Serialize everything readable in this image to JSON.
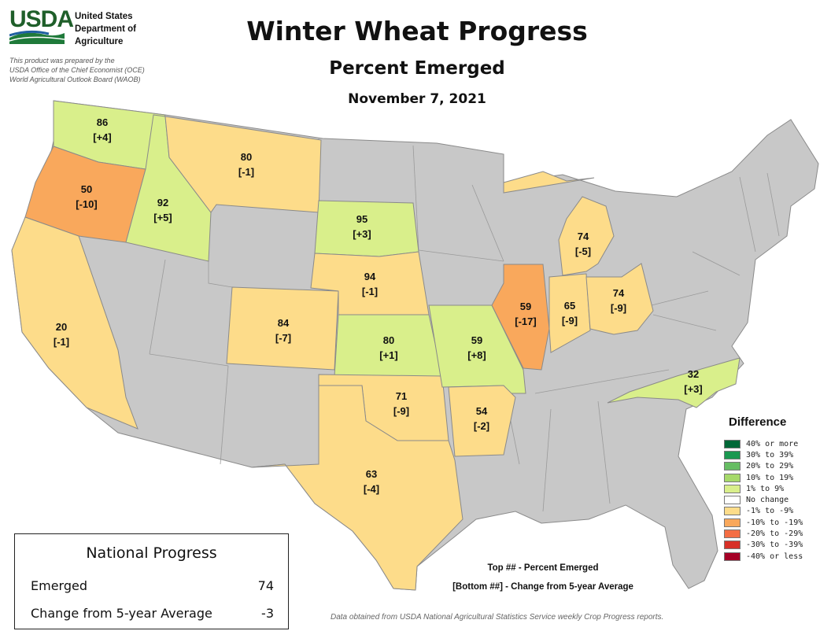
{
  "header": {
    "logo_text": "USDA",
    "agency_line1": "United States",
    "agency_line2": "Department of",
    "agency_line3": "Agriculture",
    "prepared_line1": "This product was prepared by the",
    "prepared_line2": "USDA Office of the Chief Economist (OCE)",
    "prepared_line3": "World Agricultural Outlook Board (WAOB)"
  },
  "title": "Winter Wheat Progress",
  "subtitle": "Percent Emerged",
  "date": "November 7, 2021",
  "colors": {
    "no_data": "#c8c8c8",
    "border": "#8a8a8a",
    "pos_1_9": "#d9ef8b",
    "neg_1_9": "#fddc8a",
    "neg_10_19": "#f9a85c"
  },
  "states": [
    {
      "state": "WA",
      "top": "86",
      "bottom": "[+4]",
      "category": "pos_1_9"
    },
    {
      "state": "OR",
      "top": "50",
      "bottom": "[-10]",
      "category": "neg_10_19"
    },
    {
      "state": "ID",
      "top": "92",
      "bottom": "[+5]",
      "category": "pos_1_9"
    },
    {
      "state": "MT",
      "top": "80",
      "bottom": "[-1]",
      "category": "neg_1_9"
    },
    {
      "state": "CA",
      "top": "20",
      "bottom": "[-1]",
      "category": "neg_1_9"
    },
    {
      "state": "SD",
      "top": "95",
      "bottom": "[+3]",
      "category": "pos_1_9"
    },
    {
      "state": "NE",
      "top": "94",
      "bottom": "[-1]",
      "category": "neg_1_9"
    },
    {
      "state": "CO",
      "top": "84",
      "bottom": "[-7]",
      "category": "neg_1_9"
    },
    {
      "state": "KS",
      "top": "80",
      "bottom": "[+1]",
      "category": "pos_1_9"
    },
    {
      "state": "OK",
      "top": "71",
      "bottom": "[-9]",
      "category": "neg_1_9"
    },
    {
      "state": "TX",
      "top": "63",
      "bottom": "[-4]",
      "category": "neg_1_9"
    },
    {
      "state": "MO",
      "top": "59",
      "bottom": "[+8]",
      "category": "pos_1_9"
    },
    {
      "state": "AR",
      "top": "54",
      "bottom": "[-2]",
      "category": "neg_1_9"
    },
    {
      "state": "IL",
      "top": "59",
      "bottom": "[-17]",
      "category": "neg_10_19"
    },
    {
      "state": "IN",
      "top": "65",
      "bottom": "[-9]",
      "category": "neg_1_9"
    },
    {
      "state": "OH",
      "top": "74",
      "bottom": "[-9]",
      "category": "neg_1_9"
    },
    {
      "state": "MI",
      "top": "74",
      "bottom": "[-5]",
      "category": "neg_1_9"
    },
    {
      "state": "NC",
      "top": "32",
      "bottom": "[+3]",
      "category": "pos_1_9"
    }
  ],
  "legend": {
    "title": "Difference",
    "items": [
      {
        "label": "40% or more",
        "color": "#006837"
      },
      {
        "label": "30% to 39%",
        "color": "#1a9850"
      },
      {
        "label": "20% to 29%",
        "color": "#66bd63"
      },
      {
        "label": "10% to 19%",
        "color": "#a6d96a"
      },
      {
        "label": "1% to 9%",
        "color": "#d9ef8b"
      },
      {
        "label": "No change",
        "color": "#ffffff"
      },
      {
        "label": "-1% to -9%",
        "color": "#fddc8a"
      },
      {
        "label": "-10% to -19%",
        "color": "#f9a85c"
      },
      {
        "label": "-20% to -29%",
        "color": "#f46d43"
      },
      {
        "label": "-30% to -39%",
        "color": "#d73027"
      },
      {
        "label": "-40% or less",
        "color": "#a50026"
      }
    ]
  },
  "key_note": {
    "line1": "Top ## - Percent Emerged",
    "line2": "[Bottom ##] - Change from 5-year Average"
  },
  "national": {
    "title": "National Progress",
    "rows": [
      {
        "label": "Emerged",
        "value": "74"
      },
      {
        "label": "Change from 5-year Average",
        "value": "-3"
      }
    ]
  },
  "source": "Data obtained from USDA National Agricultural Statistics Service weekly Crop Progress reports."
}
